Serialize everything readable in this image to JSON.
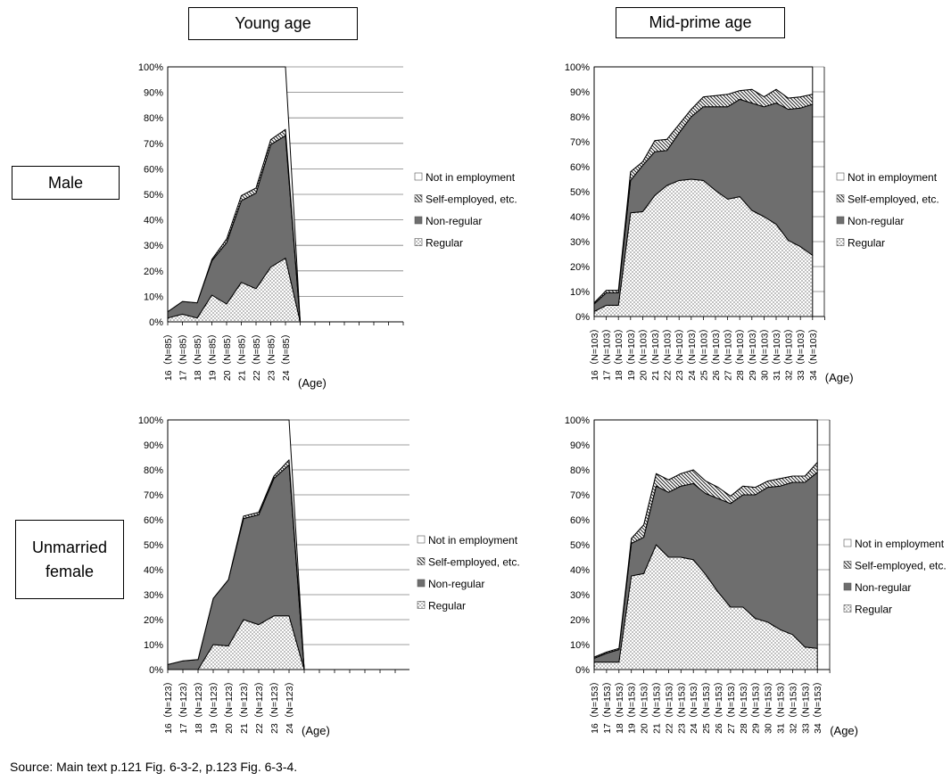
{
  "headers": {
    "col1": "Young age",
    "col2": "Mid-prime age"
  },
  "rows": {
    "row1": "Male",
    "row2_line1": "Unmarried",
    "row2_line2": "female"
  },
  "source": "Source: Main text p.121 Fig. 6-3-2, p.123 Fig. 6-3-4.",
  "colors": {
    "regular": "#ffffff",
    "non_regular": "#6e6e6e",
    "self_employed": "#ffffff",
    "not_employed": "#ffffff",
    "line": "#000000",
    "grid": "#7f7f7f"
  },
  "chart_data": [
    {
      "type": "area",
      "stacked": true,
      "panel": "Young age / Male",
      "xlabel": "(Age)",
      "x": [
        "16",
        "17",
        "18",
        "19",
        "20",
        "21",
        "22",
        "23",
        "24"
      ],
      "x_tick_labels": [
        "16（N=85）",
        "17（N=85）",
        "18（N=85）",
        "19（N=85）",
        "20（N=85）",
        "21（N=85）",
        "22（N=85）",
        "23（N=85）",
        "24（N=85）"
      ],
      "extra_empty_categories": 9,
      "ylim": [
        0,
        100
      ],
      "yticks": [
        "0%",
        "10%",
        "20%",
        "30%",
        "40%",
        "50%",
        "60%",
        "70%",
        "80%",
        "90%",
        "100%"
      ],
      "legend": [
        "Not in employment",
        "Self-employed, etc.",
        "Non-regular",
        "Regular"
      ],
      "legend_position": "right",
      "series": [
        {
          "name": "Regular",
          "values": [
            1.5,
            3,
            1.5,
            10.5,
            7,
            15.5,
            13,
            21.5,
            25
          ]
        },
        {
          "name": "Non-regular",
          "values": [
            2.5,
            5,
            6,
            13.5,
            24,
            32,
            37.5,
            48,
            48
          ]
        },
        {
          "name": "Self-employed, etc.",
          "values": [
            0,
            0,
            0,
            0.5,
            1.5,
            2,
            2,
            2,
            2.5
          ]
        },
        {
          "name": "Not in employment",
          "values": [
            96,
            92,
            92.5,
            75.5,
            67.5,
            50.5,
            47.5,
            28.5,
            24.5
          ]
        }
      ]
    },
    {
      "type": "area",
      "stacked": true,
      "panel": "Mid-prime age / Male",
      "xlabel": "(Age)",
      "x": [
        "16",
        "17",
        "18",
        "19",
        "20",
        "21",
        "22",
        "23",
        "24",
        "25",
        "26",
        "27",
        "28",
        "29",
        "30",
        "31",
        "32",
        "33",
        "34"
      ],
      "x_tick_labels": [
        "16（N=103）",
        "17（N=103）",
        "18（N=103）",
        "19（N=103）",
        "20（N=103）",
        "21（N=103）",
        "22（N=103）",
        "23（N=103）",
        "24（N=103）",
        "25（N=103）",
        "26（N=103）",
        "27（N=103）",
        "28（N=103）",
        "29（N=103）",
        "30（N=103）",
        "31（N=103）",
        "32（N=103）",
        "33（N=103）",
        "34（N=103）"
      ],
      "ylim": [
        0,
        100
      ],
      "yticks": [
        "0%",
        "10%",
        "20%",
        "30%",
        "40%",
        "50%",
        "60%",
        "70%",
        "80%",
        "90%",
        "100%"
      ],
      "legend": [
        "Not in employment",
        "Self-employed, etc.",
        "Non-regular",
        "Regular"
      ],
      "legend_position": "right",
      "series": [
        {
          "name": "Regular",
          "values": [
            2,
            4.5,
            4.5,
            41.5,
            42,
            48.5,
            52.5,
            54.5,
            55,
            54.5,
            50.5,
            47,
            48,
            42.5,
            40,
            37,
            30.5,
            28,
            24.5
          ]
        },
        {
          "name": "Non-regular",
          "values": [
            3,
            5,
            5,
            13,
            18.5,
            17.5,
            14,
            19,
            25,
            29.5,
            33.5,
            37,
            39,
            43,
            44,
            48.5,
            52.5,
            55.5,
            60.5
          ]
        },
        {
          "name": "Self-employed, etc.",
          "values": [
            0.5,
            1,
            1,
            3.5,
            1.5,
            4.5,
            4.5,
            3.5,
            3,
            4,
            4.5,
            5,
            3.5,
            5.5,
            4,
            5.5,
            4.5,
            4.5,
            4
          ]
        },
        {
          "name": "Not in employment",
          "values": [
            94.5,
            89.5,
            89.5,
            42,
            38,
            29.5,
            29,
            23,
            17,
            12,
            11.5,
            11,
            9.5,
            9,
            12,
            9,
            12.5,
            12,
            11
          ]
        }
      ]
    },
    {
      "type": "area",
      "stacked": true,
      "panel": "Young age / Unmarried female",
      "xlabel": "(Age)",
      "x": [
        "16",
        "17",
        "18",
        "19",
        "20",
        "21",
        "22",
        "23",
        "24"
      ],
      "x_tick_labels": [
        "16（N=123）",
        "17（N=123）",
        "18（N=123）",
        "19（N=123）",
        "20（N=123）",
        "21（N=123）",
        "22（N=123）",
        "23（N=123）",
        "24（N=123）"
      ],
      "extra_empty_categories": 9,
      "ylim": [
        0,
        100
      ],
      "yticks": [
        "0%",
        "10%",
        "20%",
        "30%",
        "40%",
        "50%",
        "60%",
        "70%",
        "80%",
        "90%",
        "100%"
      ],
      "legend": [
        "Not in employment",
        "Self-employed, etc.",
        "Non-regular",
        "Regular"
      ],
      "legend_position": "right",
      "series": [
        {
          "name": "Regular",
          "values": [
            0,
            0,
            0,
            10,
            9.5,
            20,
            18,
            21.5,
            21.5
          ]
        },
        {
          "name": "Non-regular",
          "values": [
            2,
            3.5,
            4,
            18.5,
            26.5,
            40.5,
            44,
            55,
            60.5
          ]
        },
        {
          "name": "Self-employed, etc.",
          "values": [
            0,
            0,
            0,
            0,
            0,
            1,
            1,
            1,
            2
          ]
        },
        {
          "name": "Not in employment",
          "values": [
            98,
            96.5,
            96,
            71.5,
            64,
            38.5,
            37,
            22.5,
            16
          ]
        }
      ]
    },
    {
      "type": "area",
      "stacked": true,
      "panel": "Mid-prime age / Unmarried female",
      "xlabel": "(Age)",
      "x": [
        "16",
        "17",
        "18",
        "19",
        "20",
        "21",
        "22",
        "23",
        "24",
        "25",
        "26",
        "27",
        "28",
        "29",
        "30",
        "31",
        "32",
        "33",
        "34"
      ],
      "x_tick_labels": [
        "16（N=153）",
        "17（N=153）",
        "18（N=153）",
        "19（N=153）",
        "20（N=153）",
        "21（N=153）",
        "22（N=153）",
        "23（N=153）",
        "24（N=153）",
        "25（N=153）",
        "26（N=153）",
        "27（N=153）",
        "28（N=153）",
        "29（N=153）",
        "30（N=153）",
        "31（N=153）",
        "32（N=153）",
        "33（N=153）",
        "34（N=153）"
      ],
      "ylim": [
        0,
        100
      ],
      "yticks": [
        "0%",
        "10%",
        "20%",
        "30%",
        "40%",
        "50%",
        "60%",
        "70%",
        "80%",
        "90%",
        "100%"
      ],
      "legend": [
        "Not in employment",
        "Self-employed, etc.",
        "Non-regular",
        "Regular"
      ],
      "legend_position": "right",
      "series": [
        {
          "name": "Regular",
          "values": [
            3,
            3,
            3,
            37.5,
            38.5,
            50,
            45,
            45,
            44,
            38,
            31,
            25,
            25,
            20.5,
            19,
            16,
            14,
            9,
            8.5
          ]
        },
        {
          "name": "Non-regular",
          "values": [
            1.5,
            3.5,
            5,
            13,
            14.5,
            23.5,
            26,
            28.5,
            30.5,
            32.5,
            37.5,
            41.5,
            45,
            49.5,
            54,
            57.5,
            61,
            66,
            70.5
          ]
        },
        {
          "name": "Self-employed, etc.",
          "values": [
            0.5,
            0.5,
            0.5,
            2,
            5,
            5,
            5,
            5,
            5.5,
            5,
            4.5,
            3,
            3.5,
            3,
            2.5,
            3,
            2.5,
            2.5,
            4
          ]
        },
        {
          "name": "Not in employment",
          "values": [
            95,
            93,
            91.5,
            47.5,
            42,
            21.5,
            24,
            21.5,
            20,
            24.5,
            27,
            30.5,
            26.5,
            27,
            24.5,
            23.5,
            22.5,
            22.5,
            17
          ]
        }
      ]
    }
  ]
}
